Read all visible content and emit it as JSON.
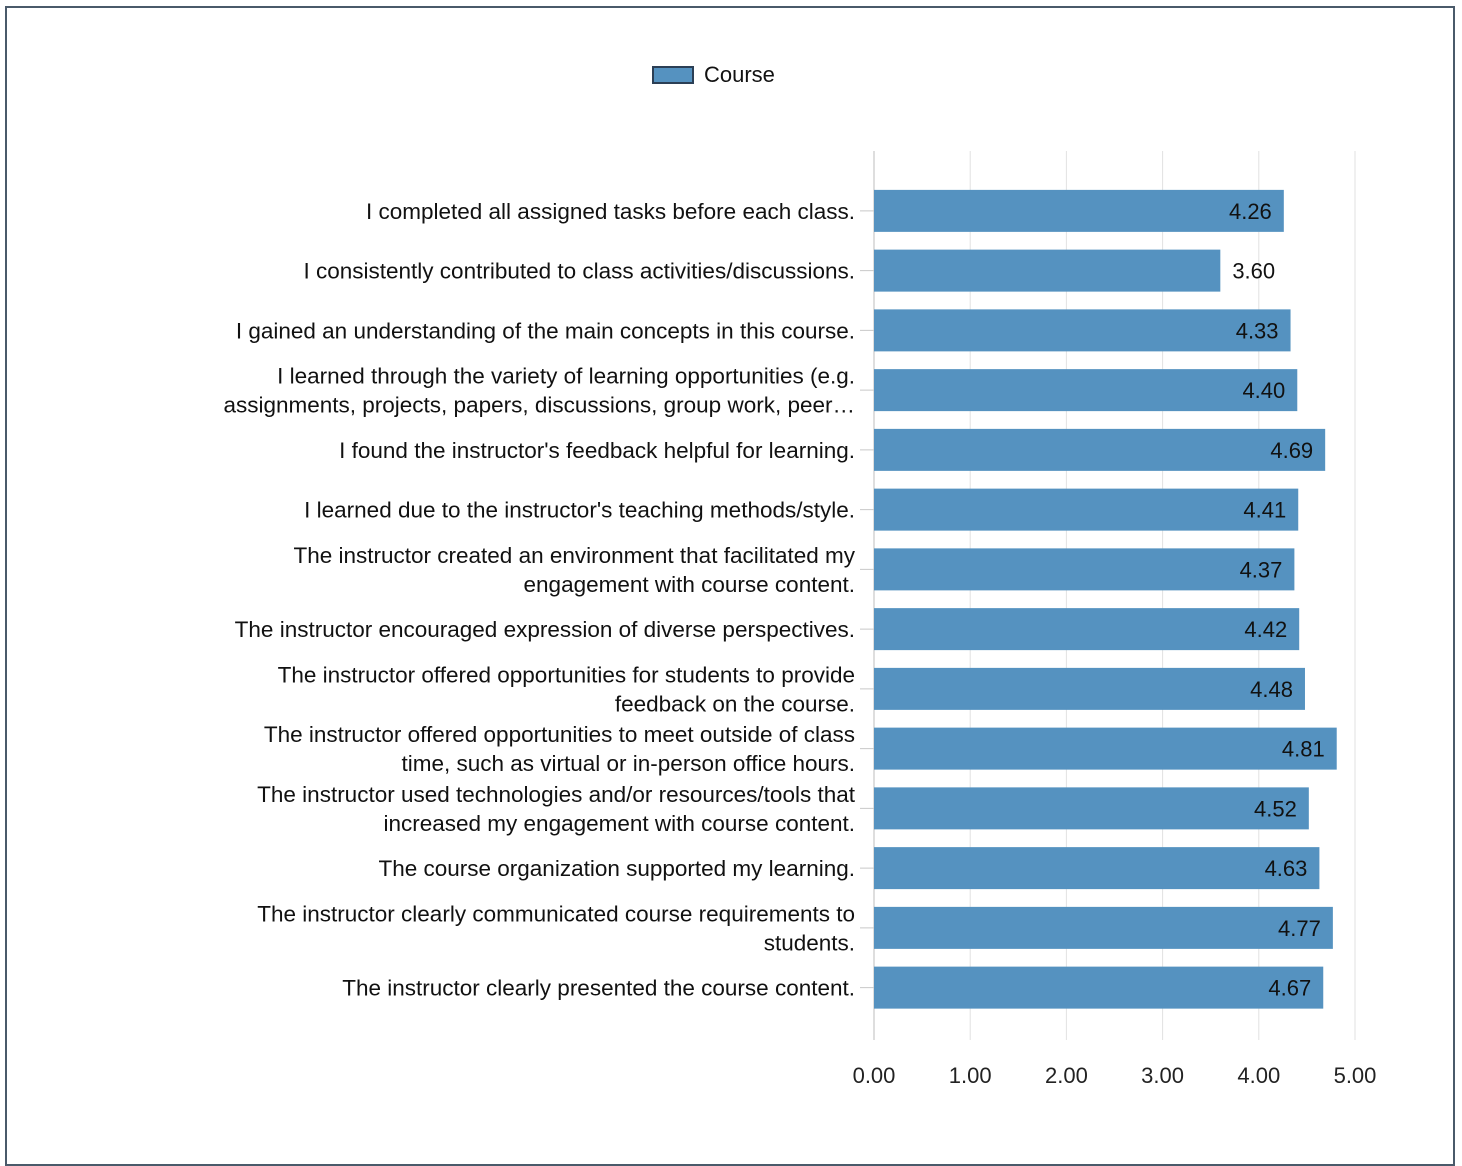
{
  "legend": {
    "label": "Course",
    "swatch_color": "#5592c0"
  },
  "chart_data": {
    "type": "bar",
    "orientation": "horizontal",
    "categories": [
      [
        "I completed all assigned tasks before each class."
      ],
      [
        "I consistently contributed to class activities/discussions."
      ],
      [
        "I gained an understanding of the main concepts in this course."
      ],
      [
        "I learned through the variety of learning opportunities (e.g.",
        "assignments, projects, papers, discussions, group work, peer…"
      ],
      [
        "I found the instructor's feedback helpful for learning."
      ],
      [
        "I learned due to the instructor's teaching methods/style."
      ],
      [
        "The instructor created an environment that facilitated my",
        "engagement with course content."
      ],
      [
        "The instructor encouraged expression of diverse perspectives."
      ],
      [
        "The instructor offered opportunities for students to provide",
        "feedback on the course."
      ],
      [
        "The instructor offered opportunities to meet outside of class",
        "time, such as virtual or in-person office hours."
      ],
      [
        "The instructor used technologies and/or resources/tools that",
        "increased my engagement with course content."
      ],
      [
        "The course organization supported my learning."
      ],
      [
        "The instructor clearly communicated course requirements to",
        "students."
      ],
      [
        "The instructor clearly presented the course content."
      ]
    ],
    "series": [
      {
        "name": "Course",
        "color": "#5592c0",
        "values": [
          4.26,
          3.6,
          4.33,
          4.4,
          4.69,
          4.41,
          4.37,
          4.42,
          4.48,
          4.81,
          4.52,
          4.63,
          4.77,
          4.67
        ],
        "labels": [
          "4.26",
          "3.60",
          "4.33",
          "4.40",
          "4.69",
          "4.41",
          "4.37",
          "4.42",
          "4.48",
          "4.81",
          "4.52",
          "4.63",
          "4.77",
          "4.67"
        ]
      }
    ],
    "xlim": [
      0,
      5
    ],
    "xticks": [
      "0.00",
      "1.00",
      "2.00",
      "3.00",
      "4.00",
      "5.00"
    ],
    "grid": true,
    "legend_position": "top-center"
  }
}
